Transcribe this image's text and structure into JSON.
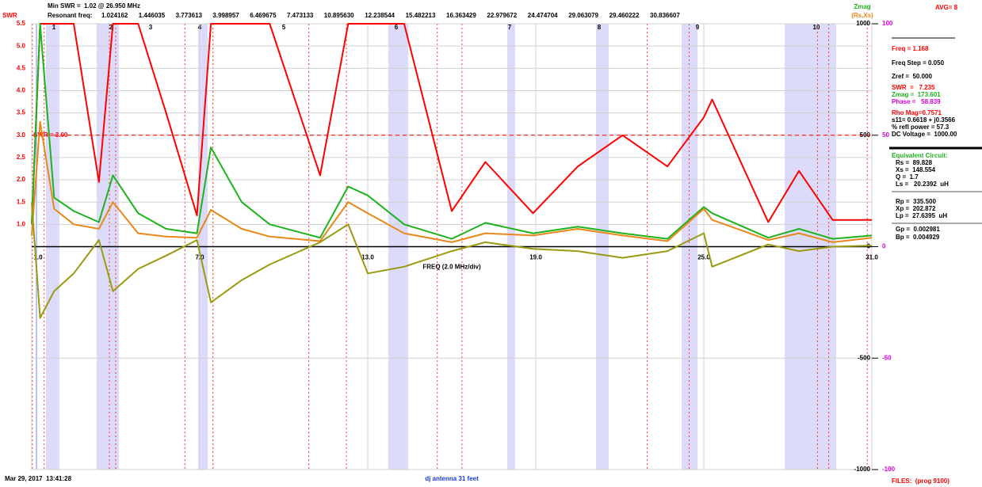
{
  "header": {
    "min_swr": "Min SWR =  1.02 @ 26.950 MHz",
    "resonant_title": "Resonant freq:",
    "avg": "AVG= 8"
  },
  "resonant_freqs": [
    {
      "value": 1.024162,
      "label": "1.024162"
    },
    {
      "value": 1.446035,
      "label": "1.446035"
    },
    {
      "value": 3.773613,
      "label": "3.773613"
    },
    {
      "value": 3.998957,
      "label": "3.998957"
    },
    {
      "value": 6.469675,
      "label": "6.469675"
    },
    {
      "value": 7.473133,
      "label": "7.473133"
    },
    {
      "value": 10.89563,
      "label": "10.895630"
    },
    {
      "value": 12.238544,
      "label": "12.238544"
    },
    {
      "value": 15.482213,
      "label": "15.482213"
    },
    {
      "value": 16.363429,
      "label": "16.363429"
    },
    {
      "value": 22.979672,
      "label": "22.979672"
    },
    {
      "value": 24.474704,
      "label": "24.474704"
    },
    {
      "value": 29.063079,
      "label": "29.063079"
    },
    {
      "value": 29.460222,
      "label": "29.460222"
    },
    {
      "value": 30.836607,
      "label": "30.836607"
    }
  ],
  "band_markers": [
    1,
    2,
    3,
    4,
    5,
    6,
    7,
    8,
    9,
    10
  ],
  "chart_data": {
    "type": "line",
    "xlabel": "FREQ (2.0 MHz/div)",
    "grid": true,
    "x": [
      1.0,
      1.3,
      1.8,
      2.5,
      3.4,
      3.9,
      4.8,
      5.8,
      6.9,
      7.4,
      8.5,
      9.5,
      11.3,
      12.3,
      13.0,
      14.3,
      16.0,
      17.2,
      18.9,
      20.5,
      22.1,
      23.7,
      25.0,
      25.3,
      27.3,
      28.4,
      29.6,
      31.0
    ],
    "xlim": [
      1,
      31
    ],
    "xticks": [
      {
        "value": 1,
        "label": "1.0"
      },
      {
        "value": 7,
        "label": "7.0"
      },
      {
        "value": 13,
        "label": "13.0"
      },
      {
        "value": 19,
        "label": "19.0"
      },
      {
        "value": 25,
        "label": "25.0"
      },
      {
        "value": 31,
        "label": "31.0"
      }
    ],
    "ylim": [
      -4.5,
      5.5
    ],
    "yticks": [
      {
        "value": 1,
        "label": "1.0"
      },
      1.5,
      {
        "value": 2,
        "label": "2.0"
      },
      2.5,
      {
        "value": 3,
        "label": "3.0"
      },
      3.5,
      {
        "value": 4,
        "label": "4.0"
      },
      4.5,
      {
        "value": 5,
        "label": "5.0"
      },
      5.5
    ],
    "y2lim": [
      -1000,
      1000
    ],
    "y2ticks": [
      1000,
      500,
      0,
      -500,
      -1000
    ],
    "y3lim": [
      -100,
      100
    ],
    "y3ticks": [
      100,
      50,
      0,
      -50,
      -100
    ],
    "reference_line": {
      "value": 3,
      "label": "SWR = 3.00"
    },
    "series": [
      {
        "name": "SWR",
        "color": "#ff0000",
        "values": [
          1.0,
          5.5,
          5.5,
          5.5,
          1.95,
          5.5,
          5.5,
          3.5,
          1.2,
          5.5,
          5.5,
          5.5,
          2.1,
          5.5,
          5.5,
          5.5,
          1.3,
          2.4,
          1.25,
          2.3,
          3.0,
          2.3,
          3.4,
          3.8,
          1.05,
          2.2,
          1.1,
          1.1
        ]
      },
      {
        "name": "Zmag",
        "color": "#1db31d",
        "axis": "y2",
        "values": [
          100,
          1000,
          220,
          160,
          110,
          320,
          150,
          80,
          60,
          445,
          200,
          100,
          40,
          270,
          230,
          100,
          35,
          107,
          60,
          90,
          60,
          35,
          178,
          150,
          40,
          80,
          35,
          50
        ]
      },
      {
        "name": "(Rs,Xs)",
        "color": "#e8881a",
        "axis": "y2",
        "values": [
          50,
          560,
          170,
          100,
          80,
          200,
          60,
          45,
          40,
          165,
          80,
          45,
          25,
          200,
          150,
          60,
          20,
          60,
          50,
          80,
          50,
          25,
          170,
          120,
          30,
          60,
          20,
          40
        ]
      },
      {
        "color": "#9a9a10",
        "axis": "y2",
        "values": [
          200,
          -320,
          -200,
          -120,
          30,
          -200,
          -100,
          -40,
          30,
          -250,
          -150,
          -80,
          20,
          100,
          -120,
          -90,
          -20,
          20,
          -10,
          -20,
          -50,
          -20,
          60,
          -90,
          10,
          -20,
          0,
          5
        ]
      }
    ]
  },
  "panel": [
    {
      "text": "Freq = 1.168",
      "color": "#ff0000"
    },
    {
      "text": "Freq Step = 0.050",
      "color": "#000000"
    },
    {
      "text": "Zref =  50.000",
      "color": "#000000"
    },
    {
      "text": "SWR  =   7.235",
      "color": "#ff0000"
    },
    {
      "text": "Zmag =  173.601",
      "color": "#1db31d"
    },
    {
      "text": "Phase =   58.839",
      "color": "#dd00dd"
    },
    {
      "text": "Rho Mag=0.7571",
      "color": "#ff0000"
    },
    {
      "text": "s11= 0.6618 + j0.3566",
      "color": "#000000"
    },
    {
      "text": "% refl power = 57.3",
      "color": "#000000"
    },
    {
      "text": "DC Voltage =  1000.00",
      "color": "#000000"
    },
    {
      "text": "Equivalent Circuit:",
      "color": "#1db31d"
    },
    {
      "text": "Rs =  89.828",
      "color": "#000000"
    },
    {
      "text": "Xs =  148.554",
      "color": "#000000"
    },
    {
      "text": "Q =  1.7",
      "color": "#000000"
    },
    {
      "text": "Ls =   20.2392  uH",
      "color": "#000000"
    },
    {
      "text": "Rp =  335.500",
      "color": "#000000"
    },
    {
      "text": "Xp =  202.872",
      "color": "#000000"
    },
    {
      "text": "Lp =  27.6395  uH",
      "color": "#000000"
    },
    {
      "text": "Gp =  0.002981",
      "color": "#000000"
    },
    {
      "text": "Bp =  0.004929",
      "color": "#000000"
    }
  ],
  "footer": {
    "timestamp": "Mar 29, 2017  13:41:28",
    "caption": "dj antenna 31 feet",
    "files": "FILES:  (prog 9100)"
  }
}
